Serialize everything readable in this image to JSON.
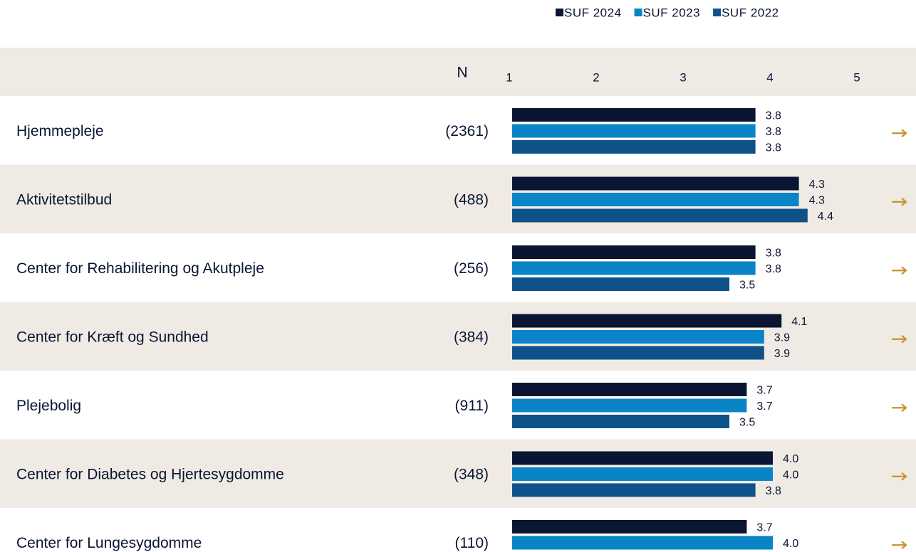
{
  "chart_data": {
    "type": "bar",
    "orientation": "horizontal",
    "n_header": "N",
    "categories": [
      "Hjemmepleje",
      "Aktivitetstilbud",
      "Center for Rehabilitering og Akutpleje",
      "Center for Kræft og Sundhed",
      "Plejebolig",
      "Center for Diabetes og Hjertesygdomme",
      "Center for Lungesygdomme"
    ],
    "n": [
      "(2361)",
      "(488)",
      "(256)",
      "(384)",
      "(911)",
      "(348)",
      "(110)"
    ],
    "series": [
      {
        "name": "SUF 2024",
        "color": "#0a1433",
        "values": [
          3.8,
          4.3,
          3.8,
          4.1,
          3.7,
          4.0,
          3.7
        ],
        "value_labels": [
          "3.8",
          "4.3",
          "3.8",
          "4.1",
          "3.7",
          "4.0",
          "3.7"
        ]
      },
      {
        "name": "SUF 2023",
        "color": "#0a84c6",
        "values": [
          3.8,
          4.3,
          3.8,
          3.9,
          3.7,
          4.0,
          4.0
        ],
        "value_labels": [
          "3.8",
          "4.3",
          "3.8",
          "3.9",
          "3.7",
          "4.0",
          "4.0"
        ]
      },
      {
        "name": "SUF 2022",
        "color": "#0f5189",
        "values": [
          3.8,
          4.4,
          3.5,
          3.9,
          3.5,
          3.8,
          null
        ],
        "value_labels": [
          "3.8",
          "4.4",
          "3.5",
          "3.9",
          "3.5",
          "3.8",
          null
        ]
      }
    ],
    "xlim": [
      1,
      5
    ],
    "xticks": [
      1,
      2,
      3,
      4,
      5
    ],
    "legend": "top-right"
  }
}
